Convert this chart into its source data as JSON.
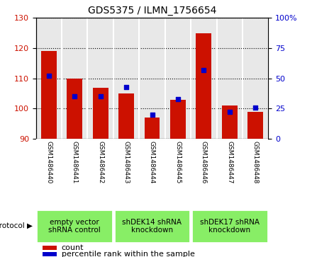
{
  "title": "GDS5375 / ILMN_1756654",
  "samples": [
    "GSM1486440",
    "GSM1486441",
    "GSM1486442",
    "GSM1486443",
    "GSM1486444",
    "GSM1486445",
    "GSM1486446",
    "GSM1486447",
    "GSM1486448"
  ],
  "count_values": [
    119.0,
    110.0,
    107.0,
    105.0,
    97.0,
    103.0,
    125.0,
    101.0,
    99.0
  ],
  "percentile_values": [
    52.0,
    35.0,
    35.0,
    43.0,
    20.0,
    33.0,
    57.0,
    22.0,
    26.0
  ],
  "ylim_left": [
    90,
    130
  ],
  "ylim_right": [
    0,
    100
  ],
  "yticks_left": [
    90,
    100,
    110,
    120,
    130
  ],
  "yticks_right": [
    0,
    25,
    50,
    75,
    100
  ],
  "bar_color": "#cc1100",
  "dot_color": "#0000cc",
  "plot_bg_color": "#e8e8e8",
  "sample_box_color": "#d8d8d8",
  "protocol_groups": [
    {
      "label": "empty vector\nshRNA control",
      "start": 0,
      "end": 3
    },
    {
      "label": "shDEK14 shRNA\nknockdown",
      "start": 3,
      "end": 6
    },
    {
      "label": "shDEK17 shRNA\nknockdown",
      "start": 6,
      "end": 9
    }
  ],
  "protocol_bg_color": "#88ee66",
  "protocol_label": "protocol",
  "legend_count_label": "count",
  "legend_percentile_label": "percentile rank within the sample",
  "title_fontsize": 10,
  "axis_fontsize": 8,
  "sample_fontsize": 6.5,
  "proto_fontsize": 7.5,
  "legend_fontsize": 8
}
